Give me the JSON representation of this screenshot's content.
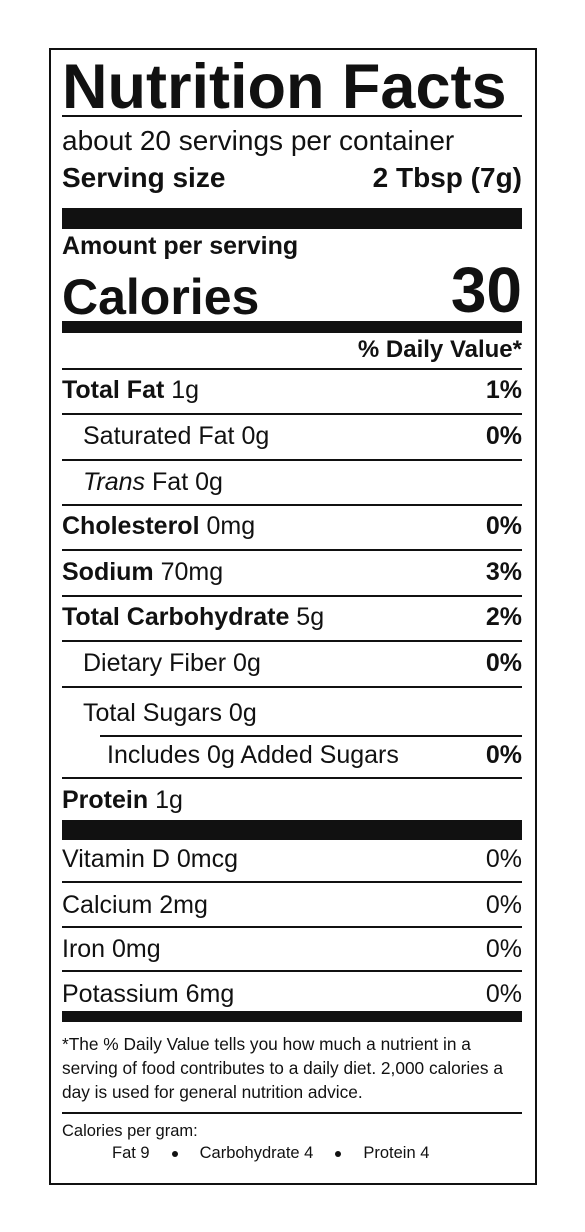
{
  "title": "Nutrition Facts",
  "servings_per_container": "about 20 servings per container",
  "serving_size": {
    "label": "Serving size",
    "value": "2 Tbsp (7g)"
  },
  "amount_per_serving": "Amount per serving",
  "calories": {
    "label": "Calories",
    "value": 30
  },
  "daily_value_header": "% Daily Value*",
  "nutrients": [
    {
      "name": "Total Fat",
      "amount": "1g",
      "daily_value": "1%"
    },
    {
      "name": "Saturated Fat",
      "amount": "0g",
      "daily_value": "0%"
    },
    {
      "name_italic": "Trans",
      "name": "Fat",
      "amount": "0g"
    },
    {
      "name": "Cholesterol",
      "amount": "0mg",
      "daily_value": "0%"
    },
    {
      "name": "Sodium",
      "amount": "70mg",
      "daily_value": "3%"
    },
    {
      "name": "Total Carbohydrate",
      "amount": "5g",
      "daily_value": "2%"
    },
    {
      "name": "Dietary Fiber",
      "amount": "0g",
      "daily_value": "0%"
    },
    {
      "name": "Total Sugars",
      "amount": "0g"
    },
    {
      "name": "Includes 0g Added Sugars",
      "daily_value": "0%"
    },
    {
      "name": "Protein",
      "amount": "1g"
    }
  ],
  "vitamins": [
    {
      "name": "Vitamin D 0mcg",
      "daily_value": "0%"
    },
    {
      "name": "Calcium 2mg",
      "daily_value": "0%"
    },
    {
      "name": "Iron 0mg",
      "daily_value": "0%"
    },
    {
      "name": "Potassium 6mg",
      "daily_value": "0%"
    }
  ],
  "footnote": "*The % Daily Value tells you how much a nutrient in a serving of food contributes to a daily diet. 2,000 calories a day is used for general nutrition advice.",
  "calories_per_gram": {
    "label": "Calories per gram:",
    "items": [
      "Fat 9",
      "Carbohydrate 4",
      "Protein 4"
    ]
  }
}
